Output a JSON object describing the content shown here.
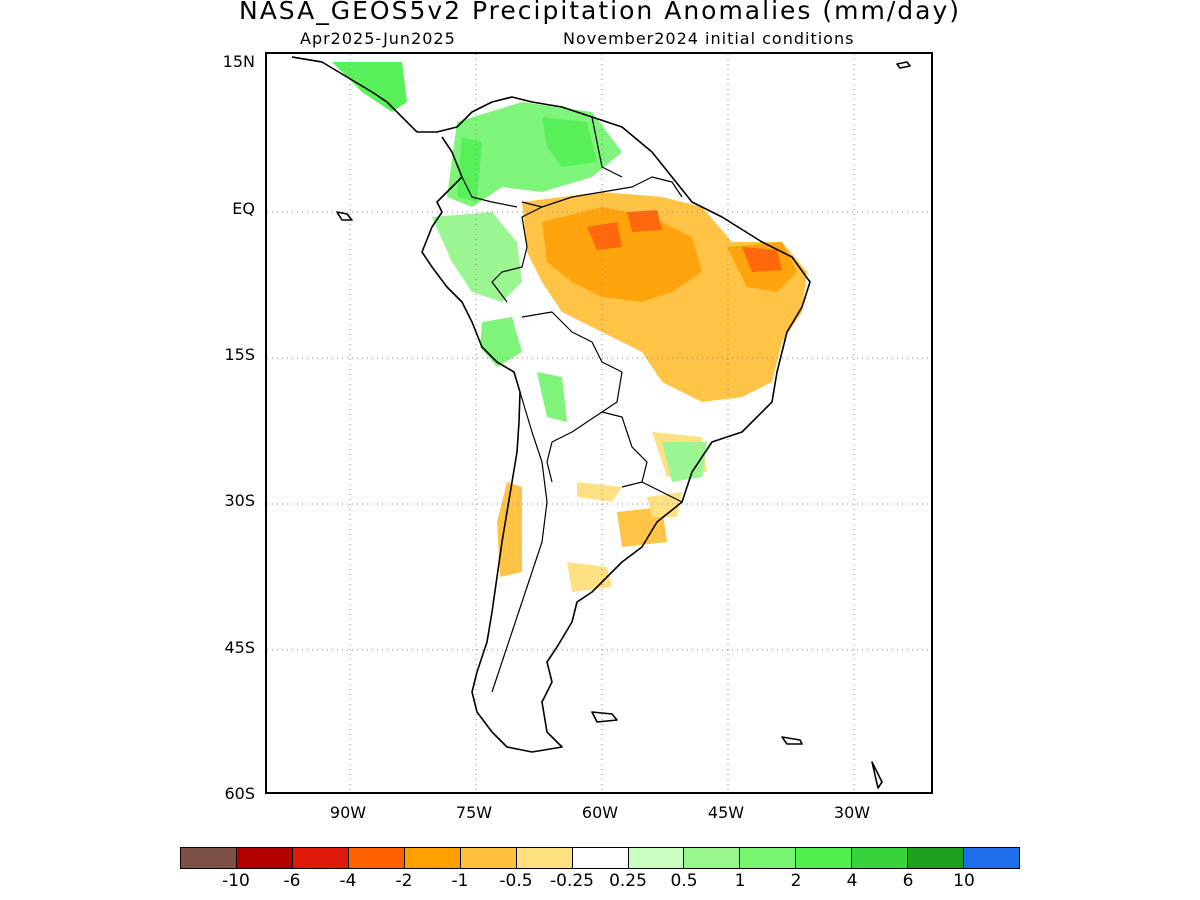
{
  "title": "NASA_GEOS5v2 Precipitation Anomalies (mm/day)",
  "subtitle_left": "Apr2025-Jun2025",
  "subtitle_right": "November2024 initial conditions",
  "axes": {
    "y_ticks": [
      "15N",
      "EQ",
      "15S",
      "30S",
      "45S",
      "60S"
    ],
    "x_ticks": [
      "90W",
      "75W",
      "60W",
      "45W",
      "30W"
    ]
  },
  "legend": {
    "colors": [
      "#7f5046",
      "#b30000",
      "#e01a0b",
      "#ff6000",
      "#ffa000",
      "#ffc03c",
      "#ffe07e",
      "#ffffff",
      "#c8ffbe",
      "#96f58c",
      "#78f573",
      "#50f050",
      "#37d23c",
      "#1ea01e",
      "#1e6eeb"
    ],
    "labels": [
      "-10",
      "-6",
      "-4",
      "-2",
      "-1",
      "-0.5",
      "-0.25",
      "0.25",
      "0.5",
      "1",
      "2",
      "4",
      "6",
      "10"
    ]
  }
}
